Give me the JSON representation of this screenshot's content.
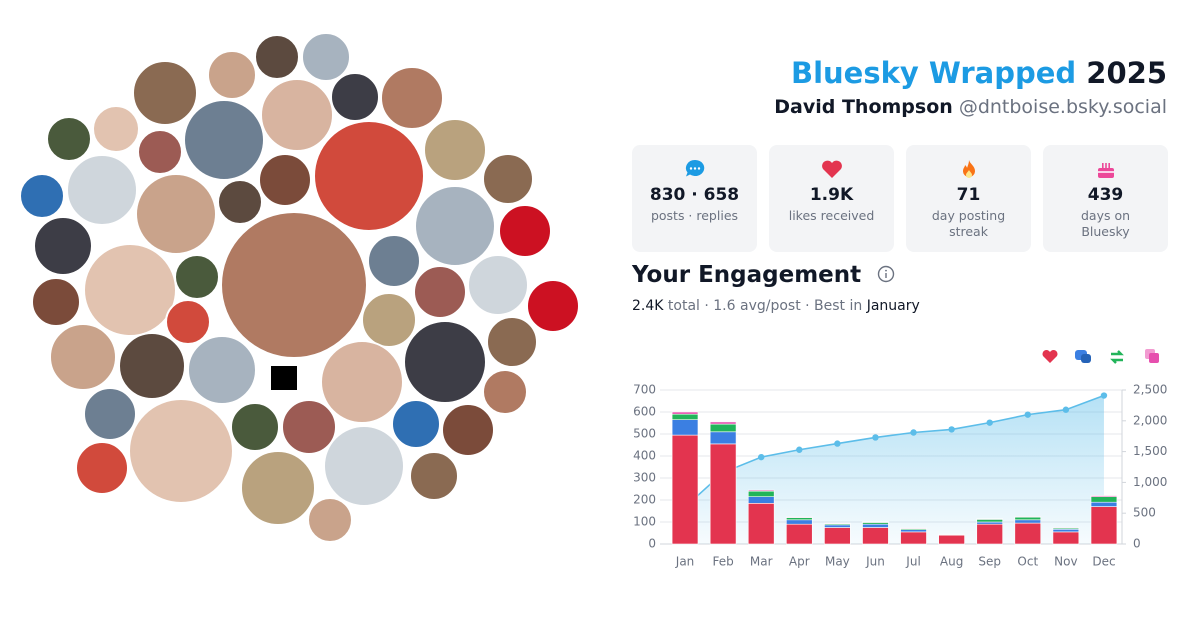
{
  "header": {
    "title": "Bluesky Wrapped",
    "year": "2025",
    "name": "David Thompson",
    "handle": "@dntboise.bsky.social"
  },
  "stats": [
    {
      "value": "830 · 658",
      "label": "posts · replies"
    },
    {
      "value": "1.9K",
      "label": "likes received"
    },
    {
      "value": "71",
      "label": "day posting streak"
    },
    {
      "value": "439",
      "label": "days on Bluesky"
    }
  ],
  "engagement": {
    "title": "Your Engagement",
    "total": "2.4K",
    "summary": "total · 1.6 avg/post · Best in",
    "best": "January"
  },
  "chart_data": {
    "type": "bar",
    "stacked": true,
    "grid": true,
    "categories": [
      "Jan",
      "Feb",
      "Mar",
      "Apr",
      "May",
      "Jun",
      "Jul",
      "Aug",
      "Sep",
      "Oct",
      "Nov",
      "Dec"
    ],
    "series": [
      {
        "color": "#e3344f",
        "values": [
          495,
          455,
          185,
          90,
          75,
          75,
          55,
          40,
          90,
          95,
          55,
          170
        ]
      },
      {
        "color": "#3b7fe2",
        "values": [
          70,
          55,
          30,
          20,
          12,
          15,
          10,
          3,
          10,
          15,
          12,
          20
        ]
      },
      {
        "color": "#22b45a",
        "values": [
          25,
          35,
          25,
          10,
          5,
          8,
          5,
          2,
          12,
          12,
          5,
          25
        ]
      },
      {
        "color": "#e64fae",
        "values": [
          10,
          10,
          5,
          3,
          3,
          3,
          3,
          0,
          3,
          3,
          3,
          5
        ]
      },
      {
        "type": "line",
        "axis": "y2",
        "color": "#5cbde9",
        "values": [
          600,
          1160,
          1410,
          1530,
          1630,
          1730,
          1810,
          1860,
          1970,
          2100,
          2180,
          2410
        ]
      }
    ],
    "ylim": [
      0,
      700
    ],
    "yticks": [
      0,
      100,
      200,
      300,
      400,
      500,
      600,
      700
    ],
    "y2lim": [
      0,
      2500
    ],
    "y2ticks": [
      0,
      500,
      {
        "value": 1000,
        "label": "1,000"
      },
      {
        "value": 1500,
        "label": "1,500"
      },
      {
        "value": 2000,
        "label": "2,000"
      },
      {
        "value": 2500,
        "label": "2,500"
      }
    ]
  }
}
